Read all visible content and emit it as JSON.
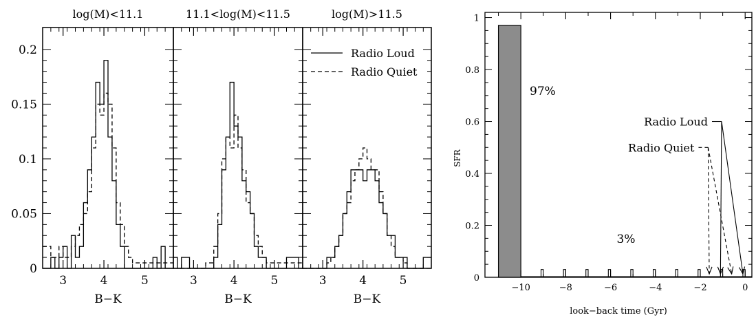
{
  "chart_data": [
    {
      "type": "histogram",
      "title": "log(M)<11.1",
      "xlabel": "B−K",
      "ylabel": "",
      "xlim": [
        2.5,
        5.7
      ],
      "ylim": [
        0,
        0.22
      ],
      "xticks": [
        3,
        4,
        5
      ],
      "yticks": [
        0,
        0.05,
        0.1,
        0.15,
        0.2
      ],
      "ytick_labels": [
        "0",
        "0.05",
        "0.1",
        "0.15",
        "0.2"
      ],
      "bin_edges": [
        2.5,
        2.6,
        2.7,
        2.8,
        2.9,
        3.0,
        3.1,
        3.2,
        3.3,
        3.4,
        3.5,
        3.6,
        3.7,
        3.8,
        3.9,
        4.0,
        4.1,
        4.2,
        4.3,
        4.4,
        4.5,
        4.6,
        4.7,
        4.8,
        4.9,
        5.0,
        5.1,
        5.2,
        5.3,
        5.4,
        5.5,
        5.6,
        5.7
      ],
      "series": [
        {
          "name": "Radio Loud",
          "style": "solid",
          "values": [
            0,
            0,
            0.01,
            0,
            0.01,
            0.02,
            0,
            0.03,
            0.01,
            0.02,
            0.06,
            0.09,
            0.12,
            0.17,
            0.15,
            0.19,
            0.12,
            0.08,
            0.04,
            0.02,
            0,
            0,
            0,
            0,
            0,
            0,
            0,
            0.01,
            0,
            0.02,
            0,
            0
          ]
        },
        {
          "name": "Radio Quiet",
          "style": "dashed",
          "values": [
            0.02,
            0.02,
            0.01,
            0.01,
            0.02,
            0.01,
            0.01,
            0.02,
            0.03,
            0.04,
            0.05,
            0.07,
            0.11,
            0.15,
            0.14,
            0.16,
            0.15,
            0.11,
            0.06,
            0.04,
            0.02,
            0.01,
            0.005,
            0.005,
            0.005,
            0.005,
            0.005,
            0.005,
            0.005,
            0.005,
            0.005,
            0.005
          ]
        }
      ]
    },
    {
      "type": "histogram",
      "title": "11.1<log(M)<11.5",
      "xlabel": "B−K",
      "ylabel": "",
      "xlim": [
        2.5,
        5.7
      ],
      "ylim": [
        0,
        0.22
      ],
      "xticks": [
        3,
        4,
        5
      ],
      "bin_edges": [
        2.5,
        2.6,
        2.7,
        2.8,
        2.9,
        3.0,
        3.1,
        3.2,
        3.3,
        3.4,
        3.5,
        3.6,
        3.7,
        3.8,
        3.9,
        4.0,
        4.1,
        4.2,
        4.3,
        4.4,
        4.5,
        4.6,
        4.7,
        4.8,
        4.9,
        5.0,
        5.1,
        5.2,
        5.3,
        5.4,
        5.5,
        5.6,
        5.7
      ],
      "series": [
        {
          "name": "Radio Loud",
          "style": "solid",
          "values": [
            0.01,
            0,
            0.01,
            0.01,
            0,
            0,
            0,
            0,
            0,
            0,
            0.01,
            0.04,
            0.09,
            0.12,
            0.17,
            0.13,
            0.12,
            0.08,
            0.07,
            0.05,
            0.02,
            0.01,
            0.01,
            0,
            0,
            0,
            0,
            0,
            0.01,
            0.01,
            0.01,
            0
          ]
        },
        {
          "name": "Radio Quiet",
          "style": "dashed",
          "values": [
            0,
            0,
            0,
            0,
            0,
            0,
            0,
            0,
            0.005,
            0.005,
            0.02,
            0.05,
            0.1,
            0.12,
            0.11,
            0.14,
            0.11,
            0.09,
            0.06,
            0.05,
            0.03,
            0.02,
            0.01,
            0.005,
            0.005,
            0.005,
            0.005,
            0.005,
            0.005,
            0.005,
            0.005,
            0.005
          ]
        }
      ]
    },
    {
      "type": "histogram",
      "title": "log(M)>11.5",
      "xlabel": "B−K",
      "ylabel": "",
      "xlim": [
        2.5,
        5.7
      ],
      "ylim": [
        0,
        0.22
      ],
      "xticks": [
        3,
        4,
        5
      ],
      "legend": {
        "position": "top-right",
        "entries": [
          "Radio Loud",
          "Radio Quiet"
        ]
      },
      "bin_edges": [
        2.5,
        2.6,
        2.7,
        2.8,
        2.9,
        3.0,
        3.1,
        3.2,
        3.3,
        3.4,
        3.5,
        3.6,
        3.7,
        3.8,
        3.9,
        4.0,
        4.1,
        4.2,
        4.3,
        4.4,
        4.5,
        4.6,
        4.7,
        4.8,
        4.9,
        5.0,
        5.1,
        5.2,
        5.3,
        5.4,
        5.5,
        5.6,
        5.7
      ],
      "series": [
        {
          "name": "Radio Loud",
          "style": "solid",
          "values": [
            0,
            0,
            0,
            0,
            0,
            0,
            0.01,
            0.01,
            0.02,
            0.03,
            0.05,
            0.07,
            0.09,
            0.09,
            0.09,
            0.08,
            0.09,
            0.09,
            0.08,
            0.06,
            0.05,
            0.03,
            0.03,
            0.01,
            0.01,
            0.01,
            0,
            0,
            0,
            0,
            0.01,
            0.01
          ]
        },
        {
          "name": "Radio Quiet",
          "style": "dashed",
          "values": [
            0,
            0,
            0,
            0,
            0,
            0,
            0.005,
            0.01,
            0.02,
            0.03,
            0.05,
            0.06,
            0.08,
            0.09,
            0.1,
            0.11,
            0.1,
            0.09,
            0.09,
            0.07,
            0.05,
            0.03,
            0.02,
            0.01,
            0.01,
            0.005,
            0,
            0,
            0,
            0,
            0,
            0
          ]
        }
      ]
    },
    {
      "type": "bar",
      "title": "",
      "xlabel": "look−back time (Gyr)",
      "ylabel": "SFR",
      "xlim": [
        -11.6,
        0.3
      ],
      "ylim": [
        0,
        1.02
      ],
      "xticks": [
        -10,
        -8,
        -6,
        -4,
        -2,
        0
      ],
      "xtick_labels": [
        "−10",
        "−8",
        "−6",
        "−4",
        "−2",
        "0"
      ],
      "yticks": [
        0,
        0.2,
        0.4,
        0.6,
        0.8,
        1
      ],
      "ytick_labels": [
        "0",
        "0.2",
        "0.4",
        "0.6",
        "0.8",
        "1"
      ],
      "main_burst": {
        "x_start": -11,
        "x_end": -10,
        "sfr": 0.97,
        "label": "97%",
        "color": "#8c8c8c"
      },
      "small_bursts": {
        "x": [
          -9.1,
          -8.1,
          -7.1,
          -6.1,
          -5.1,
          -4.1,
          -3.1,
          -2.1,
          -1.1,
          -0.1
        ],
        "sfr": 0.03,
        "width": 0.1
      },
      "small_label": "3%",
      "annotations": [
        {
          "text": "Radio Loud",
          "style": "solid",
          "anchor": [
            -1.05,
            0.6
          ],
          "arrow_targets": [
            -1.1,
            -0.1
          ],
          "arrow_tip_y": 0.05
        },
        {
          "text": "Radio Quiet",
          "style": "dashed",
          "anchor": [
            -1.65,
            0.5
          ],
          "arrow_targets": [
            -1.6,
            -0.6
          ],
          "arrow_tip_y": 0.05
        }
      ]
    }
  ]
}
